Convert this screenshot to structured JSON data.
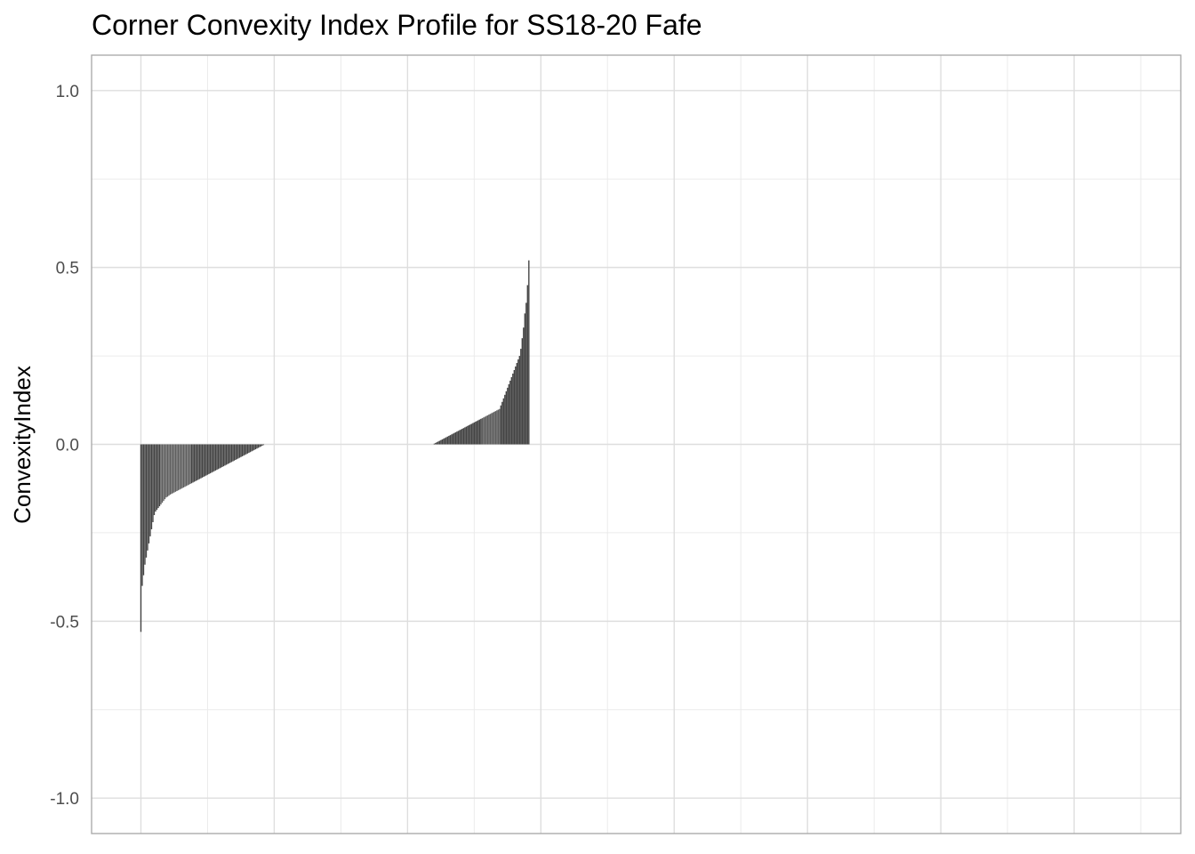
{
  "chart_data": {
    "type": "bar",
    "title": "Corner Convexity Index Profile for SS18-20 Fafe",
    "xlabel": "",
    "ylabel": "ConvexityIndex",
    "ylim": [
      -1.1,
      1.1
    ],
    "yticks": [
      {
        "value": 1.0,
        "label": "1.0"
      },
      {
        "value": 0.5,
        "label": "0.5"
      },
      {
        "value": 0.0,
        "label": "0.0"
      },
      {
        "value": -0.5,
        "label": "-0.5"
      },
      {
        "value": -1.0,
        "label": "-1.0"
      }
    ],
    "x_major_breaks": [
      0,
      100,
      200,
      300,
      400,
      500,
      600,
      700
    ],
    "x_minor_breaks": [
      50,
      150,
      250,
      350,
      450,
      550,
      650,
      750
    ],
    "xlim": [
      -37,
      780
    ],
    "grid": true,
    "legend": "none",
    "bar_colors": {
      "dark": "#444444",
      "light": "#5f5f5f"
    },
    "series": [
      {
        "values": [
          -0.53,
          -0.4,
          -0.37,
          -0.34,
          -0.32,
          -0.3,
          -0.28,
          -0.26,
          -0.24,
          -0.22,
          -0.2,
          -0.19,
          -0.185,
          -0.18,
          -0.175,
          -0.17,
          -0.165,
          -0.16,
          -0.155,
          -0.15,
          -0.148,
          -0.145,
          -0.142,
          -0.14,
          -0.138,
          -0.136,
          -0.134,
          -0.132,
          -0.13,
          -0.128,
          -0.126,
          -0.124,
          -0.122,
          -0.12,
          -0.118,
          -0.116,
          -0.114,
          -0.112,
          -0.11,
          -0.108,
          -0.106,
          -0.104,
          -0.102,
          -0.1,
          -0.098,
          -0.096,
          -0.094,
          -0.092,
          -0.09,
          -0.088,
          -0.086,
          -0.084,
          -0.082,
          -0.08,
          -0.078,
          -0.076,
          -0.074,
          -0.072,
          -0.07,
          -0.068,
          -0.066,
          -0.064,
          -0.062,
          -0.06,
          -0.058,
          -0.056,
          -0.054,
          -0.052,
          -0.05,
          -0.048,
          -0.046,
          -0.044,
          -0.042,
          -0.04,
          -0.038,
          -0.036,
          -0.034,
          -0.032,
          -0.03,
          -0.028,
          -0.026,
          -0.024,
          -0.022,
          -0.02,
          -0.018,
          -0.016,
          -0.014,
          -0.012,
          -0.01,
          -0.008,
          -0.006,
          -0.004,
          -0.002,
          0,
          0,
          0,
          0,
          0,
          0,
          0,
          0,
          0,
          0,
          0,
          0,
          0,
          0,
          0,
          0,
          0,
          0,
          0,
          0,
          0,
          0,
          0,
          0,
          0,
          0,
          0,
          0,
          0,
          0,
          0,
          0,
          0,
          0,
          0,
          0,
          0,
          0,
          0,
          0,
          0,
          0,
          0,
          0,
          0,
          0,
          0,
          0,
          0,
          0,
          0,
          0,
          0,
          0,
          0,
          0,
          0,
          0,
          0,
          0,
          0,
          0,
          0,
          0,
          0,
          0,
          0,
          0,
          0,
          0,
          0,
          0,
          0,
          0,
          0,
          0,
          0,
          0,
          0,
          0,
          0,
          0,
          0,
          0,
          0,
          0,
          0,
          0,
          0,
          0,
          0,
          0,
          0,
          0,
          0,
          0,
          0,
          0,
          0,
          0,
          0,
          0,
          0,
          0,
          0,
          0,
          0,
          0,
          0,
          0,
          0,
          0,
          0,
          0,
          0,
          0,
          0,
          0,
          0,
          0,
          0,
          0,
          0,
          0,
          0,
          0,
          0,
          0.002,
          0.004,
          0.006,
          0.008,
          0.01,
          0.012,
          0.014,
          0.016,
          0.018,
          0.02,
          0.022,
          0.024,
          0.026,
          0.028,
          0.03,
          0.032,
          0.034,
          0.036,
          0.038,
          0.04,
          0.042,
          0.044,
          0.046,
          0.048,
          0.05,
          0.052,
          0.054,
          0.056,
          0.058,
          0.06,
          0.062,
          0.064,
          0.066,
          0.068,
          0.07,
          0.072,
          0.074,
          0.076,
          0.078,
          0.08,
          0.082,
          0.084,
          0.086,
          0.088,
          0.09,
          0.092,
          0.094,
          0.096,
          0.098,
          0.1,
          0.11,
          0.12,
          0.13,
          0.14,
          0.15,
          0.16,
          0.17,
          0.18,
          0.19,
          0.2,
          0.21,
          0.22,
          0.23,
          0.24,
          0.25,
          0.27,
          0.3,
          0.33,
          0.37,
          0.4,
          0.45,
          0.52
        ],
        "shade": [
          "dark",
          "dark",
          "dark",
          "dark",
          "dark",
          "dark",
          "dark",
          "dark",
          "dark",
          "dark",
          "dark",
          "dark",
          "dark",
          "dark",
          "dark",
          "light",
          "light",
          "light",
          "light",
          "light",
          "light",
          "light",
          "light",
          "light",
          "light",
          "light",
          "light",
          "light",
          "light",
          "light",
          "light",
          "light",
          "light",
          "light",
          "light",
          "light",
          "light",
          "light",
          "dark",
          "dark",
          "dark",
          "dark",
          "dark",
          "dark",
          "dark",
          "dark",
          "dark",
          "dark",
          "dark",
          "dark",
          "dark",
          "dark",
          "dark",
          "dark",
          "dark",
          "dark",
          "dark",
          "dark",
          "dark",
          "dark",
          "dark",
          "dark",
          "dark",
          "dark",
          "dark",
          "dark",
          "dark",
          "dark",
          "dark",
          "dark",
          "dark",
          "dark",
          "dark",
          "dark",
          "dark",
          "dark",
          "dark",
          "dark",
          "dark",
          "dark",
          "dark",
          "dark",
          "dark",
          "dark",
          "dark",
          "dark",
          "dark",
          "dark",
          "dark",
          "dark",
          "dark",
          "dark",
          "dark",
          "dark",
          "dark",
          "dark",
          "dark",
          "dark",
          "dark",
          "dark",
          "dark",
          "dark",
          "dark",
          "dark",
          "dark",
          "dark",
          "dark",
          "dark",
          "dark",
          "dark",
          "dark",
          "dark",
          "dark",
          "dark",
          "dark",
          "dark",
          "dark",
          "dark",
          "dark",
          "dark",
          "dark",
          "dark",
          "dark",
          "dark",
          "dark",
          "dark",
          "dark",
          "dark",
          "dark",
          "dark",
          "dark",
          "dark",
          "dark",
          "dark",
          "dark",
          "dark",
          "dark",
          "dark",
          "dark",
          "dark",
          "dark",
          "dark",
          "dark",
          "dark",
          "dark",
          "dark",
          "dark",
          "dark",
          "dark",
          "dark",
          "dark",
          "dark",
          "dark",
          "dark",
          "dark",
          "dark",
          "dark",
          "dark",
          "dark",
          "dark",
          "dark",
          "dark",
          "dark",
          "dark",
          "dark",
          "dark",
          "dark",
          "dark",
          "dark",
          "dark",
          "dark",
          "dark",
          "dark",
          "dark",
          "dark",
          "dark",
          "dark",
          "dark",
          "dark",
          "dark",
          "dark",
          "dark",
          "dark",
          "dark",
          "dark",
          "dark",
          "dark",
          "dark",
          "dark",
          "dark",
          "dark",
          "dark",
          "dark",
          "dark",
          "dark",
          "dark",
          "dark",
          "dark",
          "dark",
          "dark",
          "dark",
          "dark",
          "dark",
          "dark",
          "dark",
          "dark",
          "dark",
          "dark",
          "dark",
          "dark",
          "dark",
          "dark",
          "dark",
          "dark",
          "dark",
          "dark",
          "dark",
          "dark",
          "dark",
          "dark",
          "dark",
          "dark",
          "dark",
          "dark",
          "dark",
          "dark",
          "dark",
          "dark",
          "dark",
          "dark",
          "dark",
          "dark",
          "dark",
          "dark",
          "dark",
          "dark",
          "dark",
          "dark",
          "dark",
          "dark",
          "dark",
          "dark",
          "dark",
          "dark",
          "dark",
          "dark",
          "dark",
          "dark",
          "dark",
          "dark",
          "dark",
          "dark",
          "dark",
          "dark",
          "dark",
          "dark",
          "light",
          "light",
          "light",
          "light",
          "light",
          "light",
          "light",
          "light",
          "light",
          "light",
          "light",
          "light",
          "light",
          "light",
          "dark",
          "dark",
          "dark",
          "dark",
          "dark",
          "dark",
          "dark",
          "dark",
          "dark",
          "dark",
          "dark",
          "dark",
          "dark",
          "dark",
          "dark",
          "dark",
          "dark",
          "dark",
          "dark",
          "dark",
          "dark",
          "dark",
          "dark",
          "dark",
          "dark",
          "dark",
          "dark",
          "dark",
          "dark",
          "dark",
          "dark",
          "dark",
          "dark",
          "dark",
          "dark",
          "dark",
          "dark",
          "dark",
          "dark",
          "dark",
          "dark",
          "dark"
        ]
      }
    ]
  }
}
